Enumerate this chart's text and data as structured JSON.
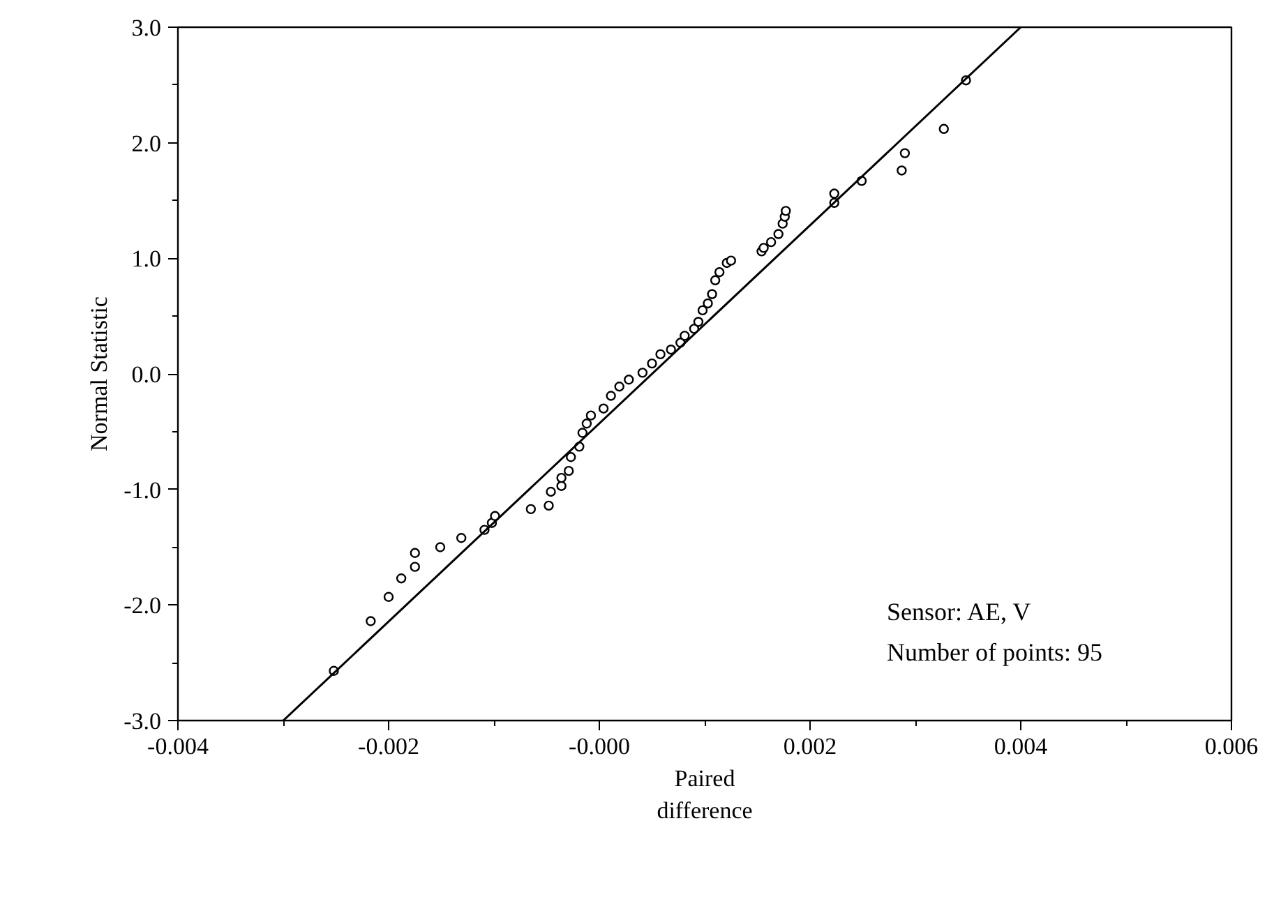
{
  "chart_data": {
    "type": "scatter",
    "xlabel": "Paired\ndifference",
    "ylabel": "Normal Statistic",
    "annotations": [
      "Sensor: AE, V",
      "Number of points: 95"
    ],
    "xlim": [
      -0.004,
      0.006
    ],
    "ylim": [
      -3.0,
      3.0
    ],
    "xticks": [
      -0.004,
      {
        "value": -0.003,
        "label": null
      },
      -0.002,
      {
        "value": -0.001,
        "label": null
      },
      {
        "value": 0,
        "label": "-0.000"
      },
      {
        "value": 0.001,
        "label": null
      },
      0.002,
      {
        "value": 0.003,
        "label": null
      },
      0.004,
      {
        "value": 0.005,
        "label": null
      },
      0.006
    ],
    "yticks": [
      {
        "value": -3,
        "label": "-3.0"
      },
      {
        "value": -2.5,
        "label": null
      },
      {
        "value": -2,
        "label": "-2.0"
      },
      {
        "value": -1.5,
        "label": null
      },
      {
        "value": -1,
        "label": "-1.0"
      },
      {
        "value": -0.5,
        "label": null
      },
      {
        "value": 0,
        "label": "0.0"
      },
      {
        "value": 0.5,
        "label": null
      },
      {
        "value": 1,
        "label": "1.0"
      },
      {
        "value": 1.5,
        "label": null
      },
      {
        "value": 2,
        "label": "2.0"
      },
      {
        "value": 2.5,
        "label": null
      },
      {
        "value": 3,
        "label": "3.0"
      }
    ],
    "grid": false,
    "marker": "circle",
    "series": [
      {
        "color": "#000000",
        "x": [
          -0.00252,
          -0.00217,
          -0.002,
          -0.00188,
          -0.00175,
          -0.00175,
          -0.00151,
          -0.00131,
          -0.00109,
          -0.00102,
          -0.00099,
          -0.00065,
          -0.00048,
          -0.00046,
          -0.00036,
          -0.00036,
          -0.00029,
          -0.00027,
          -0.00019,
          -0.00016,
          -0.00012,
          -8e-05,
          4e-05,
          0.00011,
          0.00019,
          0.00028,
          0.00041,
          0.0005,
          0.00058,
          0.00068,
          0.00077,
          0.00081,
          0.0009,
          0.00094,
          0.00098,
          0.00103,
          0.00107,
          0.0011,
          0.00114,
          0.00121,
          0.00125,
          0.00154,
          0.00156,
          0.00163,
          0.0017,
          0.00174,
          0.00176,
          0.00177,
          0.00223,
          0.00223,
          0.00249,
          0.00287,
          0.0029,
          0.00327,
          0.00348
        ],
        "values": [
          -2.57,
          -2.14,
          -1.93,
          -1.77,
          -1.67,
          -1.55,
          -1.5,
          -1.42,
          -1.35,
          -1.29,
          -1.23,
          -1.17,
          -1.14,
          -1.02,
          -0.97,
          -0.9,
          -0.84,
          -0.72,
          -0.63,
          -0.51,
          -0.43,
          -0.36,
          -0.3,
          -0.19,
          -0.11,
          -0.05,
          0.01,
          0.09,
          0.17,
          0.21,
          0.27,
          0.33,
          0.39,
          0.45,
          0.55,
          0.61,
          0.69,
          0.81,
          0.88,
          0.96,
          0.98,
          1.06,
          1.09,
          1.14,
          1.21,
          1.3,
          1.36,
          1.41,
          1.56,
          1.48,
          1.67,
          1.76,
          1.91,
          2.12,
          2.54
        ]
      },
      {
        "type": "line",
        "color": "#000000",
        "line_style": "solid",
        "marker": "none",
        "x": [
          -0.003,
          0.004
        ],
        "values": [
          -3.0,
          3.0
        ]
      }
    ]
  }
}
